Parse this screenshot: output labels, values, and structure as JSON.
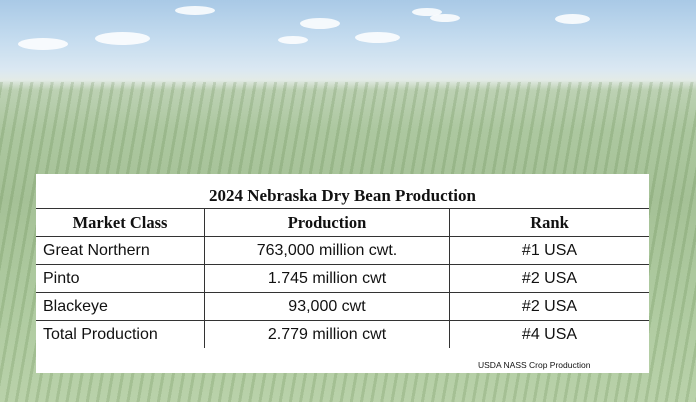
{
  "title": "2024 Nebraska Dry Bean Production",
  "table": {
    "headers": [
      "Market Class",
      "Production",
      "Rank"
    ],
    "rows": [
      [
        "Great Northern",
        "763,000 million cwt.",
        "#1 USA"
      ],
      [
        "Pinto",
        "1.745 million cwt",
        "#2 USA"
      ],
      [
        "Blackeye",
        "93,000 cwt",
        "#2 USA"
      ],
      [
        "Total Production",
        "2.779 million cwt",
        "#4 USA"
      ]
    ]
  },
  "source": "USDA NASS Crop Production"
}
